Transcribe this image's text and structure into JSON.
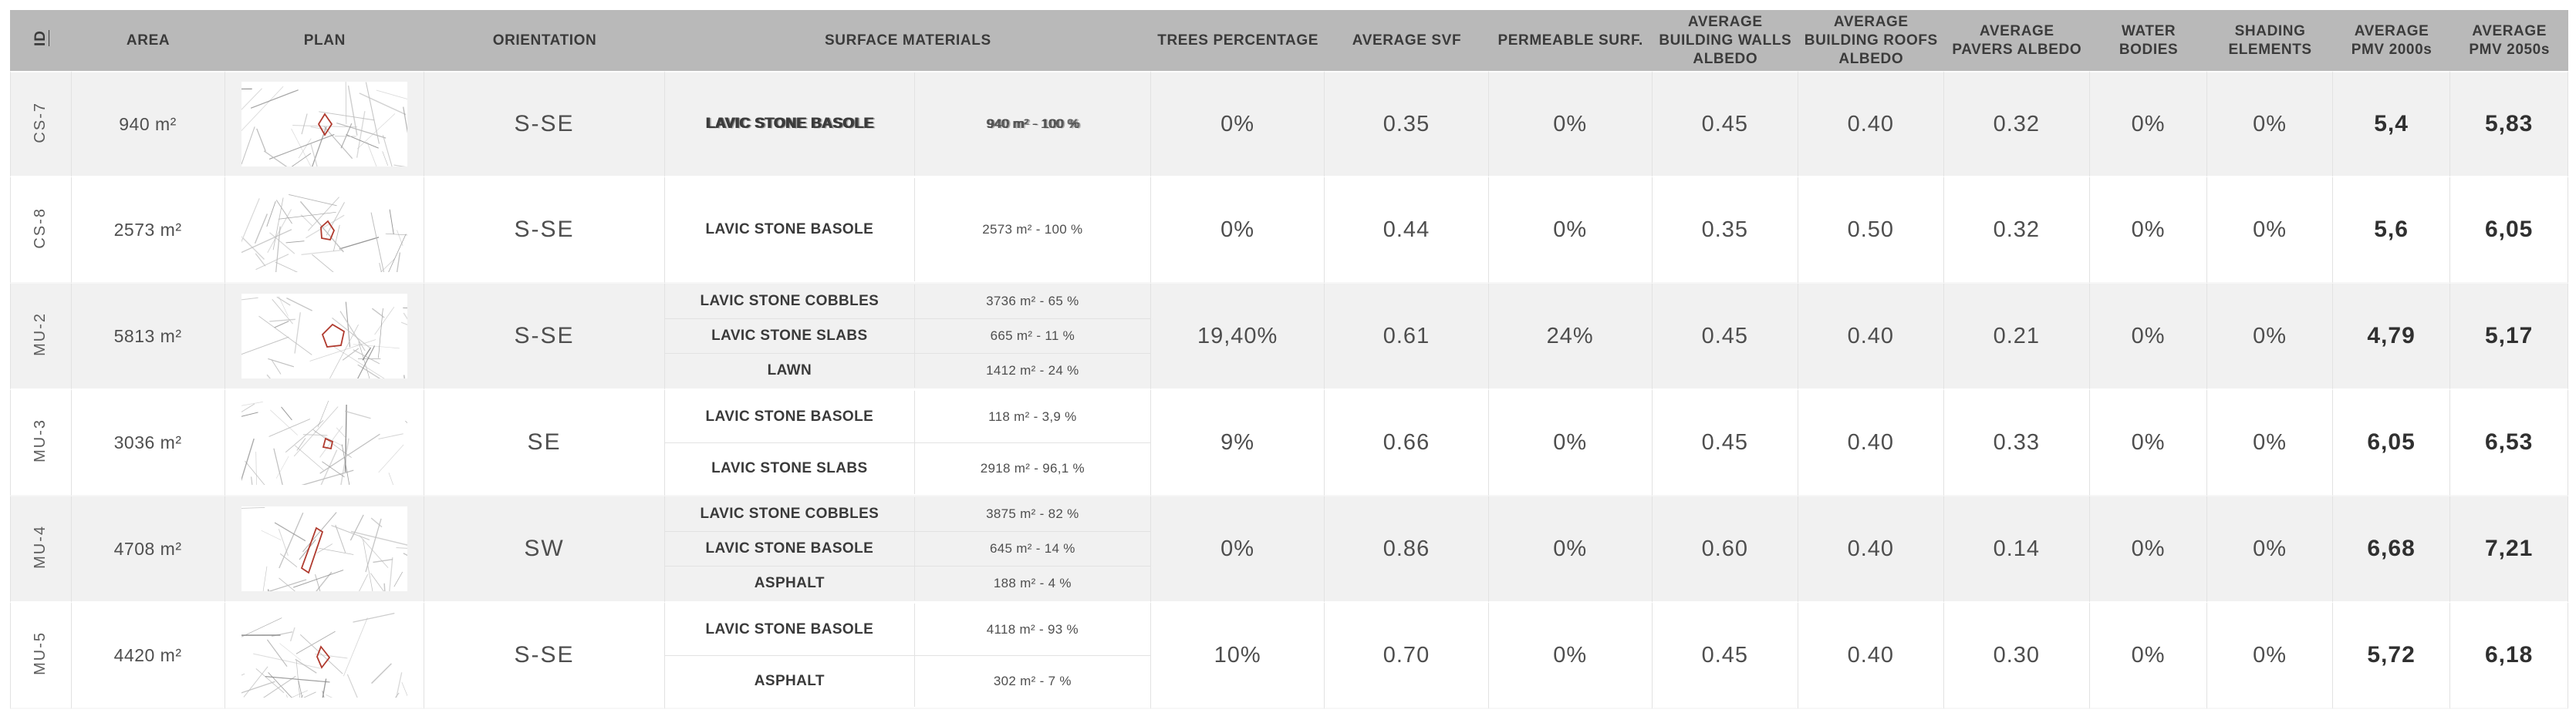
{
  "colors": {
    "header_bg": "#b9b9b9",
    "row_stripe_bg": "#f1f1f1",
    "row_bg": "#ffffff",
    "grid_line": "#e2e2e2",
    "text_dark": "#3b3b3b",
    "text_mid": "#4f4f4f",
    "plan_outline_red": "#b03a2e"
  },
  "table": {
    "columns": [
      {
        "key": "id",
        "label": "ID"
      },
      {
        "key": "area",
        "label": "AREA"
      },
      {
        "key": "plan",
        "label": "PLAN"
      },
      {
        "key": "orientation",
        "label": "ORIENTATION"
      },
      {
        "key": "materials",
        "label": "SURFACE MATERIALS"
      },
      {
        "key": "trees",
        "label": "TREES PERCENTAGE"
      },
      {
        "key": "svf",
        "label": "AVERAGE SVF"
      },
      {
        "key": "permeable",
        "label": "PERMEABLE SURF."
      },
      {
        "key": "walls_albedo",
        "label": "AVERAGE BUILDING WALLS ALBEDO"
      },
      {
        "key": "roofs_albedo",
        "label": "AVERAGE BUILDING ROOFS ALBEDO"
      },
      {
        "key": "pavers_albedo",
        "label": "AVERAGE PAVERS ALBEDO"
      },
      {
        "key": "water",
        "label": "WATER BODIES"
      },
      {
        "key": "shading",
        "label": "SHADING ELEMENTS"
      },
      {
        "key": "pmv_2000s",
        "label": "AVERAGE PMV 2000s"
      },
      {
        "key": "pmv_2050s",
        "label": "AVERAGE PMV 2050s"
      }
    ],
    "rows": [
      {
        "id": "CS-7",
        "area": "940 m²",
        "orientation": "S-SE",
        "materials": [
          {
            "name": "LAVIC STONE BASOLE",
            "value": "940 m² - 100 %",
            "glitch": true
          }
        ],
        "trees": "0%",
        "svf": "0.35",
        "permeable": "0%",
        "walls_albedo": "0.45",
        "roofs_albedo": "0.40",
        "pavers_albedo": "0.32",
        "water": "0%",
        "shading": "0%",
        "pmv_2000s": "5,4",
        "pmv_2050s": "5,83"
      },
      {
        "id": "CS-8",
        "area": "2573 m²",
        "orientation": "S-SE",
        "materials": [
          {
            "name": "LAVIC STONE BASOLE",
            "value": "2573 m² - 100 %"
          }
        ],
        "trees": "0%",
        "svf": "0.44",
        "permeable": "0%",
        "walls_albedo": "0.35",
        "roofs_albedo": "0.50",
        "pavers_albedo": "0.32",
        "water": "0%",
        "shading": "0%",
        "pmv_2000s": "5,6",
        "pmv_2050s": "6,05"
      },
      {
        "id": "MU-2",
        "area": "5813 m²",
        "orientation": "S-SE",
        "materials": [
          {
            "name": "LAVIC STONE COBBLES",
            "value": "3736 m² - 65 %"
          },
          {
            "name": "LAVIC STONE SLABS",
            "value": "665 m² - 11 %"
          },
          {
            "name": "LAWN",
            "value": "1412 m² - 24 %"
          }
        ],
        "trees": "19,40%",
        "svf": "0.61",
        "permeable": "24%",
        "walls_albedo": "0.45",
        "roofs_albedo": "0.40",
        "pavers_albedo": "0.21",
        "water": "0%",
        "shading": "0%",
        "pmv_2000s": "4,79",
        "pmv_2050s": "5,17"
      },
      {
        "id": "MU-3",
        "area": "3036 m²",
        "orientation": "SE",
        "materials": [
          {
            "name": "LAVIC STONE BASOLE",
            "value": "118 m² - 3,9 %"
          },
          {
            "name": "LAVIC STONE SLABS",
            "value": "2918 m² - 96,1 %"
          }
        ],
        "trees": "9%",
        "svf": "0.66",
        "permeable": "0%",
        "walls_albedo": "0.45",
        "roofs_albedo": "0.40",
        "pavers_albedo": "0.33",
        "water": "0%",
        "shading": "0%",
        "pmv_2000s": "6,05",
        "pmv_2050s": "6,53"
      },
      {
        "id": "MU-4",
        "area": "4708 m²",
        "orientation": "SW",
        "materials": [
          {
            "name": "LAVIC STONE COBBLES",
            "value": "3875 m² - 82 %"
          },
          {
            "name": "LAVIC STONE BASOLE",
            "value": "645 m² - 14 %"
          },
          {
            "name": "ASPHALT",
            "value": "188 m² - 4 %"
          }
        ],
        "trees": "0%",
        "svf": "0.86",
        "permeable": "0%",
        "walls_albedo": "0.60",
        "roofs_albedo": "0.40",
        "pavers_albedo": "0.14",
        "water": "0%",
        "shading": "0%",
        "pmv_2000s": "6,68",
        "pmv_2050s": "7,21"
      },
      {
        "id": "MU-5",
        "area": "4420 m²",
        "orientation": "S-SE",
        "materials": [
          {
            "name": "LAVIC STONE BASOLE",
            "value": "4118 m² - 93 %"
          },
          {
            "name": "ASPHALT",
            "value": "302 m² - 7 %"
          }
        ],
        "trees": "10%",
        "svf": "0.70",
        "permeable": "0%",
        "walls_albedo": "0.45",
        "roofs_albedo": "0.40",
        "pavers_albedo": "0.30",
        "water": "0%",
        "shading": "0%",
        "pmv_2000s": "5,72",
        "pmv_2050s": "6,18"
      }
    ]
  }
}
